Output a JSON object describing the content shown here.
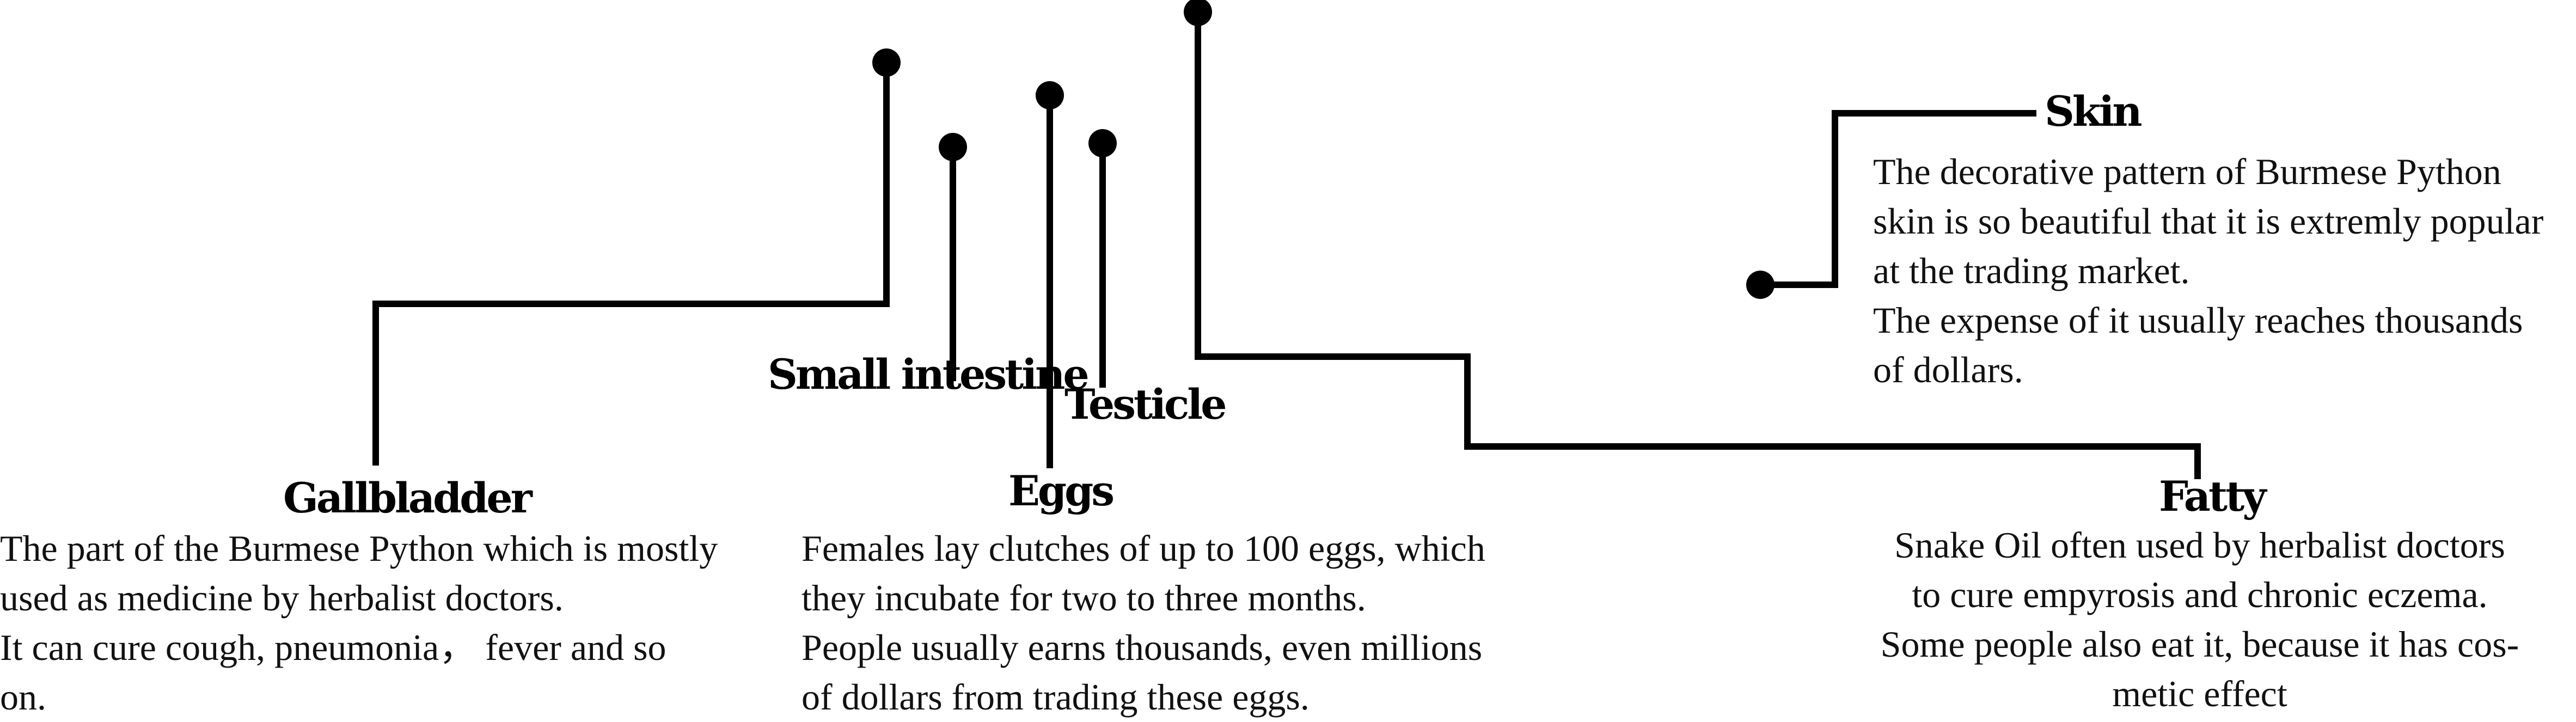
{
  "labels": {
    "gallbladder": "Gallbladder",
    "small_intestine": "Small intestine",
    "testicle": "Testicle",
    "eggs": "Eggs",
    "skin": "Skin",
    "fatty": "Fatty"
  },
  "descriptions": {
    "gallbladder": [
      "The part of the Burmese Python which is mostly",
      "used as medicine by herbalist doctors.",
      "It can cure cough, pneumonia， fever and so",
      "on."
    ],
    "eggs": [
      "Females lay clutches of up to 100 eggs, which",
      "they incubate for two to three months.",
      "People usually earns thousands, even millions",
      "of dollars from trading these eggs."
    ],
    "skin": [
      "The decorative pattern of Burmese Python",
      "skin is so beautiful that it is extremly popular",
      "at the trading market.",
      "The expense of it usually reaches thousands",
      "of dollars."
    ],
    "fatty": [
      "Snake Oil often used by herbalist doctors",
      "to cure empyrosis and chronic eczema.",
      "Some people also eat it, because it has cos-",
      "metic effect"
    ]
  },
  "colors": {
    "line": "#000000",
    "text": "#111111"
  }
}
